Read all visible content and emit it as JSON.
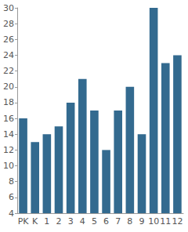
{
  "chart_data": {
    "type": "bar",
    "categories": [
      "PK",
      "K",
      "1",
      "2",
      "3",
      "4",
      "5",
      "6",
      "7",
      "8",
      "9",
      "10",
      "11",
      "12"
    ],
    "values": [
      16,
      13,
      14,
      15,
      18,
      21,
      17,
      12,
      17,
      20,
      14,
      30,
      23,
      24
    ],
    "color": "#336a8f",
    "ylim": [
      4,
      30
    ],
    "yticks": [
      4,
      6,
      8,
      10,
      12,
      14,
      16,
      18,
      20,
      22,
      24,
      26,
      28,
      30
    ],
    "grid": false
  }
}
